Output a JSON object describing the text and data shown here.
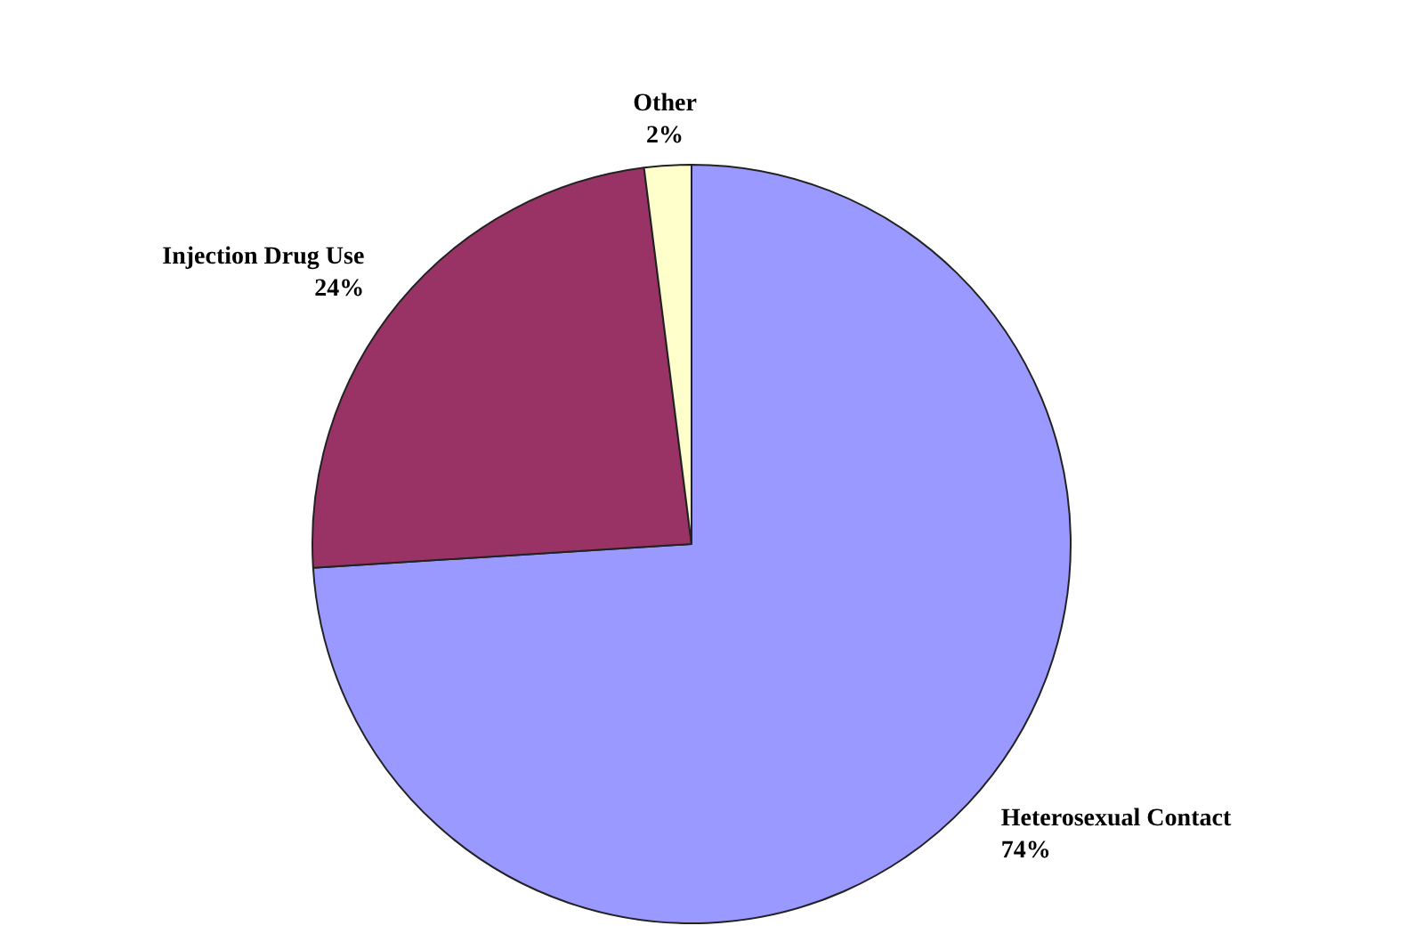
{
  "chart_data": {
    "type": "pie",
    "categories": [
      "Heterosexual Contact",
      "Injection Drug Use",
      "Other"
    ],
    "values": [
      74,
      24,
      2
    ],
    "colors": [
      "#9999ff",
      "#993366",
      "#ffffcc"
    ],
    "value_labels": [
      "74%",
      "24%",
      "2%"
    ]
  }
}
